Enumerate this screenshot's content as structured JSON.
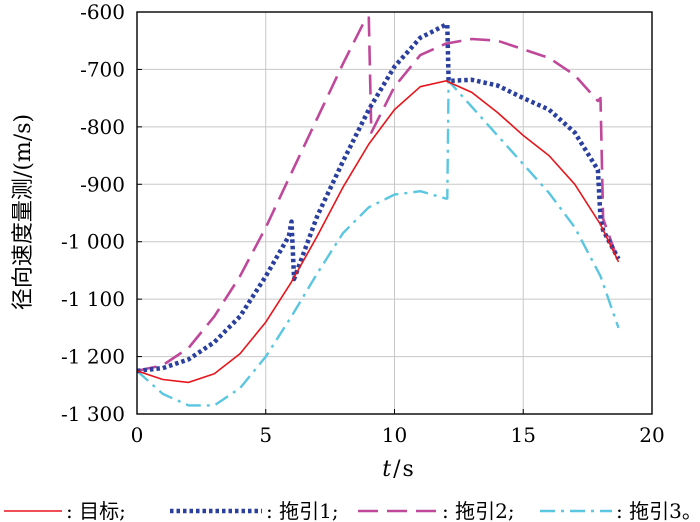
{
  "chart_data": {
    "type": "line",
    "xlabel_italic": "t",
    "xlabel_unit": "s",
    "ylabel": "径向速度量测",
    "ylabel_unit": "(m/s)",
    "xlim": [
      0,
      20
    ],
    "ylim": [
      -1300,
      -600
    ],
    "xticks": [
      0,
      5,
      10,
      15,
      20
    ],
    "xtick_labels": [
      "0",
      "5",
      "10",
      "15",
      "20"
    ],
    "yticks": [
      -600,
      -700,
      -800,
      -900,
      -1000,
      -1100,
      -1200,
      -1300
    ],
    "ytick_labels": [
      "-600",
      "-700",
      "-800",
      "-900",
      "-1 000",
      "-1 100",
      "-1 200",
      "-1 300"
    ],
    "grid": true,
    "legend_position": "bottom",
    "series": [
      {
        "name": ": 目标;",
        "color": "#e8141b",
        "style": "solid",
        "x": [
          0,
          1,
          2,
          3,
          4,
          5,
          6,
          7,
          8,
          9,
          10,
          11,
          12,
          13,
          14,
          15,
          16,
          17,
          18,
          18.7
        ],
        "y": [
          -1225,
          -1240,
          -1245,
          -1230,
          -1195,
          -1140,
          -1070,
          -990,
          -905,
          -830,
          -770,
          -730,
          -720,
          -740,
          -775,
          -815,
          -850,
          -900,
          -970,
          -1035
        ]
      },
      {
        "name": ": 拖引1;",
        "color": "#2a3f9e",
        "style": "dotted",
        "x": [
          0,
          1,
          2,
          3,
          4,
          5,
          5.9,
          6.0,
          6.1,
          7,
          8,
          9,
          10,
          11,
          12,
          12.05,
          12.1,
          13,
          14,
          15,
          16,
          17,
          17.9,
          18.0,
          18.1,
          18.7
        ],
        "y": [
          -1225,
          -1220,
          -1205,
          -1175,
          -1130,
          -1060,
          -990,
          -965,
          -1065,
          -955,
          -860,
          -770,
          -695,
          -645,
          -622,
          -622,
          -720,
          -718,
          -728,
          -750,
          -770,
          -810,
          -875,
          -960,
          -980,
          -1030
        ]
      },
      {
        "name": ": 拖引2;",
        "color": "#c0489a",
        "style": "dashed",
        "x": [
          0,
          1,
          2,
          3,
          4,
          5,
          6,
          7,
          8,
          8.9,
          9.0,
          9.1,
          10,
          11,
          12,
          13,
          14,
          15,
          16,
          17,
          17.9,
          18.0,
          18.1,
          18.7
        ],
        "y": [
          -1225,
          -1215,
          -1185,
          -1130,
          -1060,
          -975,
          -880,
          -785,
          -690,
          -610,
          -610,
          -810,
          -730,
          -675,
          -655,
          -647,
          -650,
          -665,
          -680,
          -710,
          -755,
          -750,
          -960,
          -1035
        ]
      },
      {
        "name": ": 拖引3。",
        "color": "#5bc6e0",
        "style": "dashdot",
        "x": [
          0,
          1,
          2,
          3,
          4,
          5,
          6,
          7,
          8,
          9,
          10,
          11,
          12,
          12.05,
          12.1,
          13,
          14,
          15,
          16,
          17,
          18,
          18.7
        ],
        "y": [
          -1225,
          -1265,
          -1285,
          -1285,
          -1255,
          -1200,
          -1130,
          -1055,
          -985,
          -940,
          -918,
          -912,
          -925,
          -925,
          -720,
          -765,
          -815,
          -865,
          -915,
          -975,
          -1060,
          -1150
        ]
      }
    ]
  }
}
